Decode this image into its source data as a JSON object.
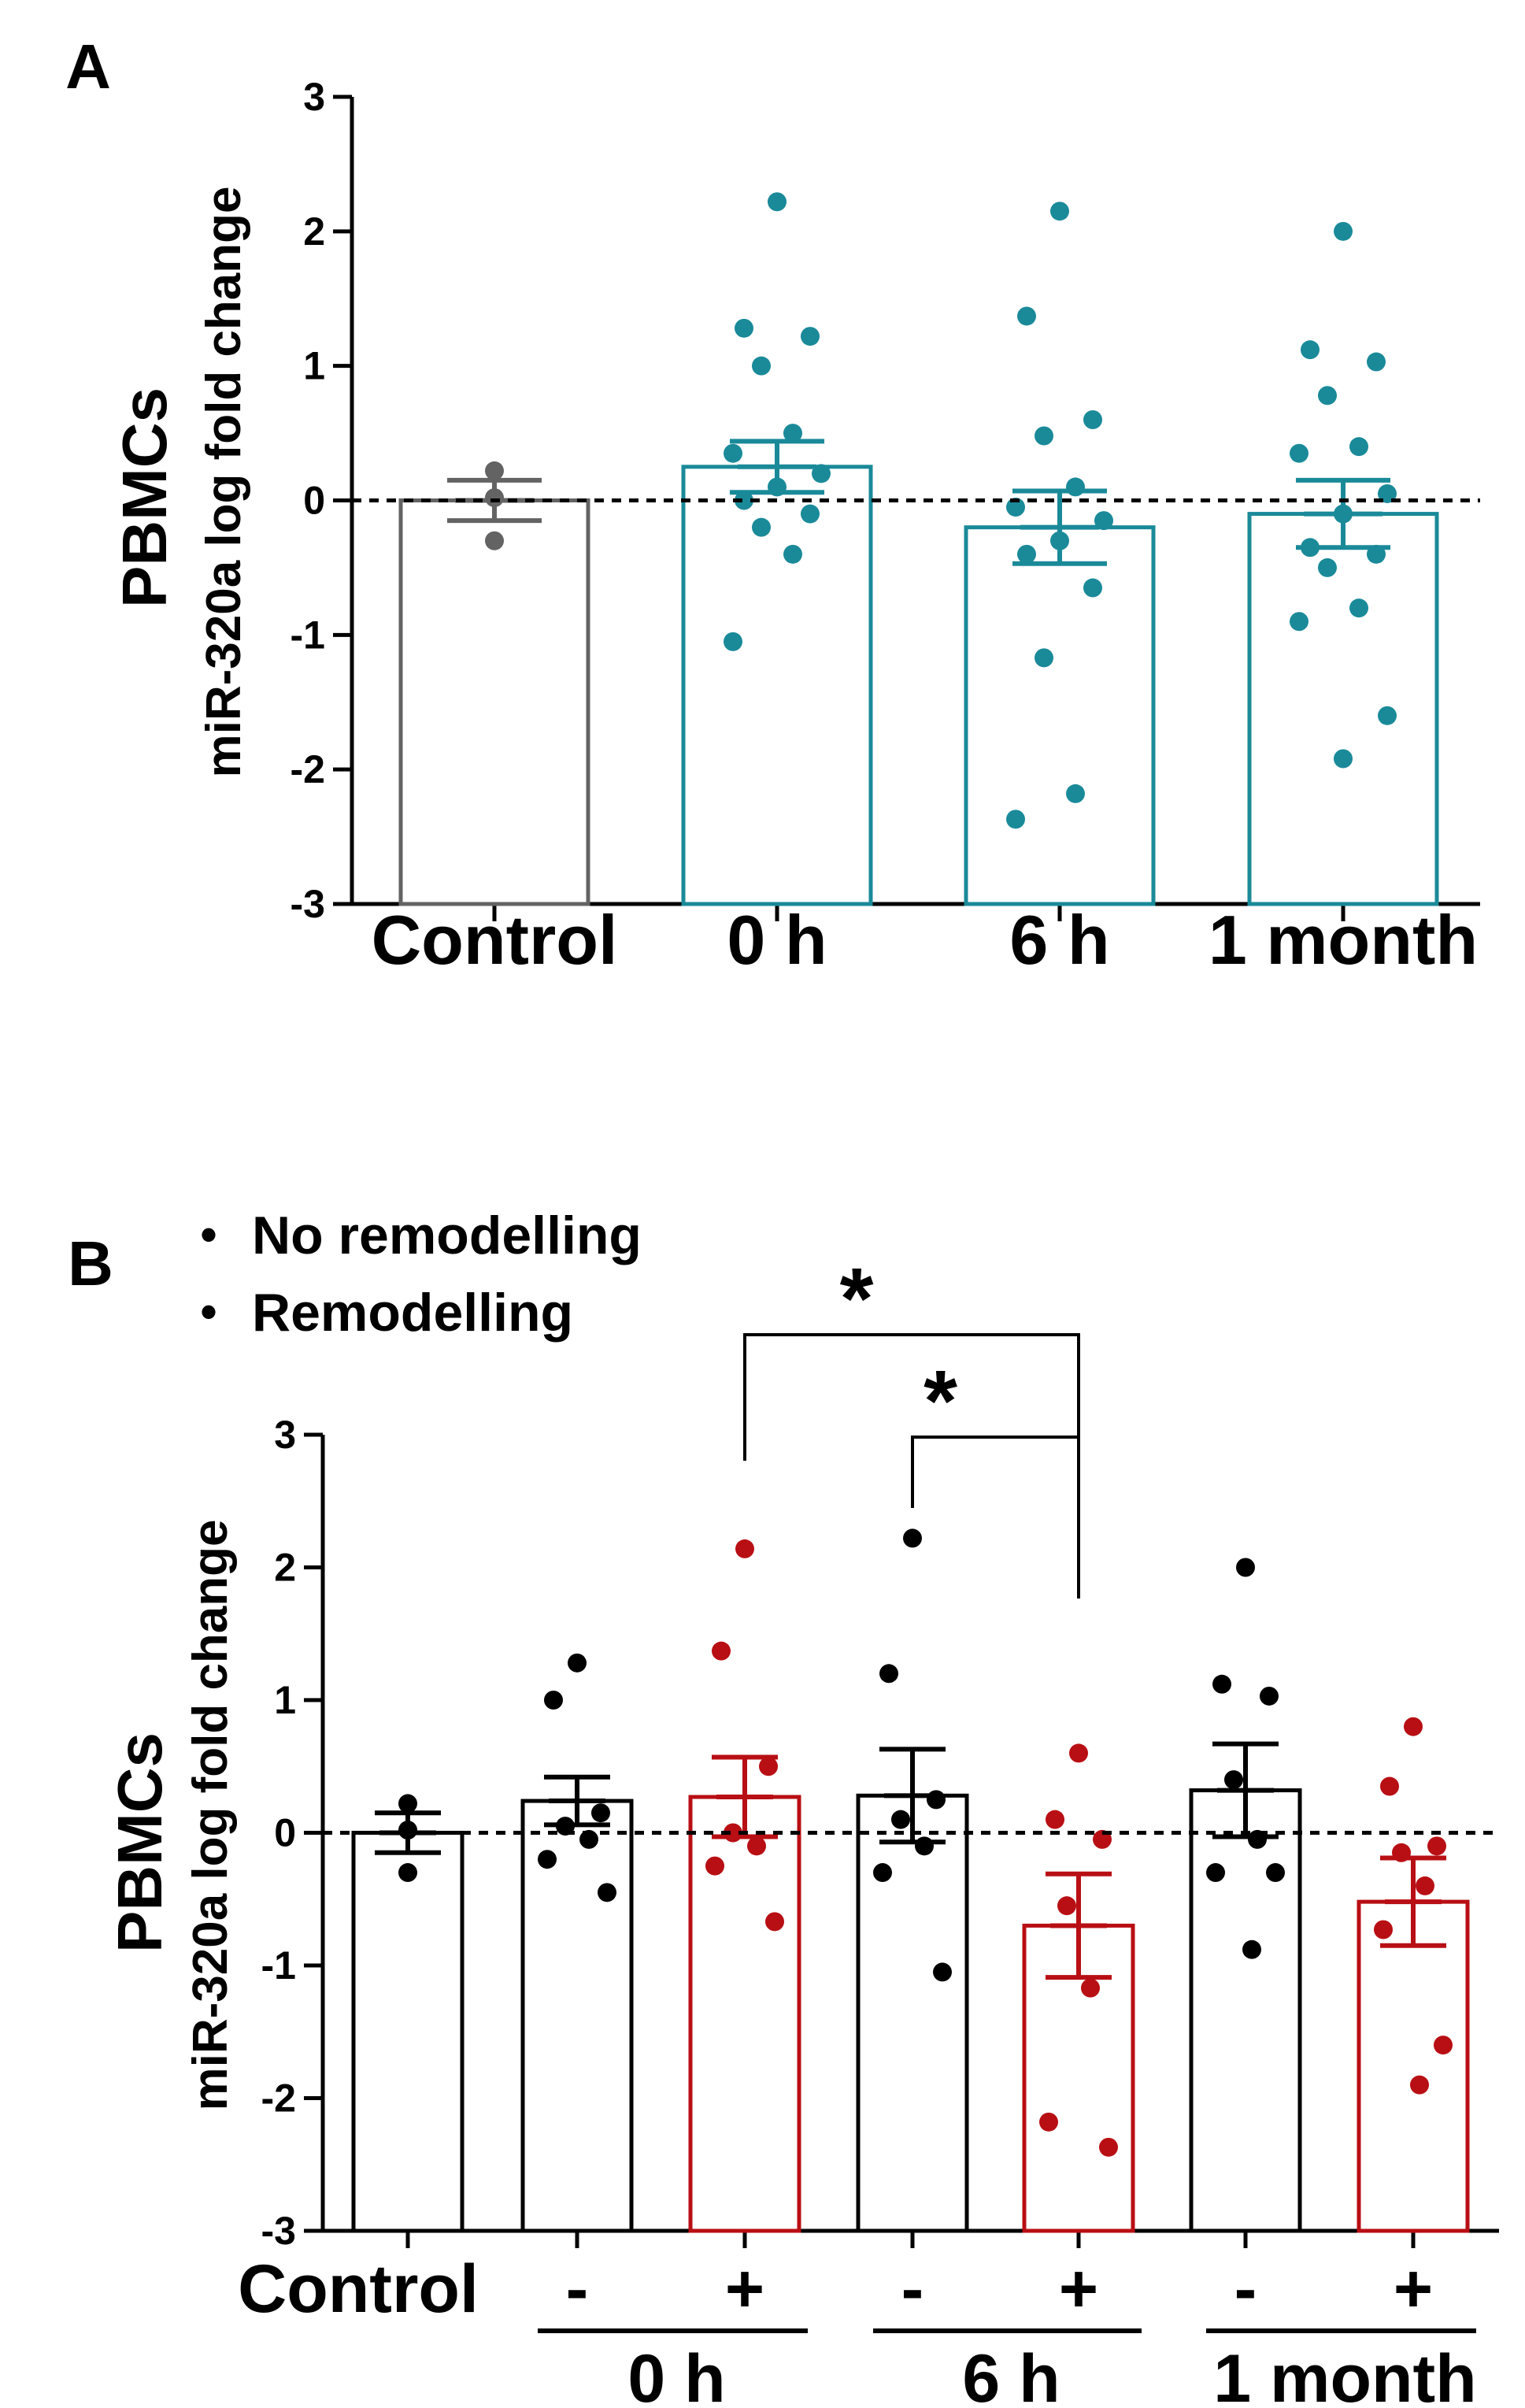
{
  "colors": {
    "axis": "#000000",
    "control_gray": "#636363",
    "teal": "#1a8a99",
    "black": "#000000",
    "red": "#b80f14"
  },
  "chart_data": [
    {
      "panel_label": "A",
      "type": "bar",
      "ylabel_main": "PBMCs",
      "ylabel_sub": "miR-320a log fold change",
      "ylim": [
        -3,
        3
      ],
      "yticks": [
        "3",
        "2",
        "1",
        "0",
        "-1",
        "-2",
        "-3"
      ],
      "reference_line": 0,
      "categories": [
        "Control",
        "0 h",
        "6 h",
        "1 month"
      ],
      "bars": [
        {
          "category": "Control",
          "mean": 0.0,
          "sem": 0.15,
          "color": "control_gray",
          "points": [
            0.22,
            0.02,
            -0.3
          ]
        },
        {
          "category": "0 h",
          "mean": 0.25,
          "sem": 0.19,
          "color": "teal",
          "points": [
            2.22,
            1.28,
            1.22,
            1.0,
            0.5,
            0.35,
            0.2,
            0.1,
            0.0,
            -0.1,
            -0.2,
            -0.4,
            -1.05
          ]
        },
        {
          "category": "6 h",
          "mean": -0.2,
          "sem": 0.27,
          "color": "teal",
          "points": [
            2.15,
            1.37,
            0.6,
            0.48,
            0.1,
            -0.05,
            -0.15,
            -0.3,
            -0.4,
            -0.65,
            -1.17,
            -2.18,
            -2.37
          ]
        },
        {
          "category": "1 month",
          "mean": -0.1,
          "sem": 0.25,
          "color": "teal",
          "points": [
            2.0,
            1.12,
            1.03,
            0.78,
            0.4,
            0.35,
            0.05,
            -0.1,
            -0.35,
            -0.4,
            -0.5,
            -0.8,
            -0.9,
            -1.6,
            -1.92
          ]
        }
      ]
    },
    {
      "panel_label": "B",
      "type": "bar",
      "ylabel_main": "PBMCs",
      "ylabel_sub": "miR-320a log fold change",
      "ylim": [
        -3,
        3
      ],
      "yticks": [
        "3",
        "2",
        "1",
        "0",
        "-1",
        "-2",
        "-3"
      ],
      "reference_line": 0,
      "legend": [
        {
          "label": "No remodelling",
          "color": "black"
        },
        {
          "label": "Remodelling",
          "color": "red"
        }
      ],
      "groups": [
        "0 h",
        "6 h",
        "1 month"
      ],
      "bars": [
        {
          "label": "Control",
          "mean": 0.0,
          "sem": 0.15,
          "color": "black",
          "points": [
            0.22,
            0.02,
            -0.3
          ]
        },
        {
          "label": "-",
          "group": "0 h",
          "mean": 0.24,
          "sem": 0.18,
          "color": "black",
          "points": [
            1.28,
            1.0,
            0.15,
            0.05,
            -0.05,
            -0.2,
            -0.45
          ]
        },
        {
          "label": "+",
          "group": "0 h",
          "mean": 0.27,
          "sem": 0.3,
          "color": "red",
          "points": [
            2.14,
            1.37,
            0.5,
            0.0,
            -0.1,
            -0.25,
            -0.67
          ]
        },
        {
          "label": "-",
          "group": "6 h",
          "mean": 0.28,
          "sem": 0.35,
          "color": "black",
          "points": [
            2.22,
            1.2,
            0.25,
            0.1,
            -0.1,
            -0.3,
            -1.05
          ]
        },
        {
          "label": "+",
          "group": "6 h",
          "mean": -0.7,
          "sem": 0.39,
          "color": "red",
          "points": [
            0.6,
            0.1,
            -0.05,
            -0.55,
            -1.17,
            -2.18,
            -2.37
          ]
        },
        {
          "label": "-",
          "group": "1 month",
          "mean": 0.32,
          "sem": 0.35,
          "color": "black",
          "points": [
            2.0,
            1.12,
            1.03,
            0.4,
            -0.05,
            -0.3,
            -0.3,
            -0.88
          ]
        },
        {
          "label": "+",
          "group": "1 month",
          "mean": -0.52,
          "sem": 0.33,
          "color": "red",
          "points": [
            0.8,
            0.35,
            -0.1,
            -0.15,
            -0.4,
            -0.73,
            -1.6,
            -1.9
          ]
        }
      ],
      "significance": [
        {
          "from_bar": 2,
          "to_bar": 4,
          "label": "*"
        },
        {
          "from_bar": 3,
          "to_bar": 4,
          "label": "*"
        }
      ]
    }
  ]
}
